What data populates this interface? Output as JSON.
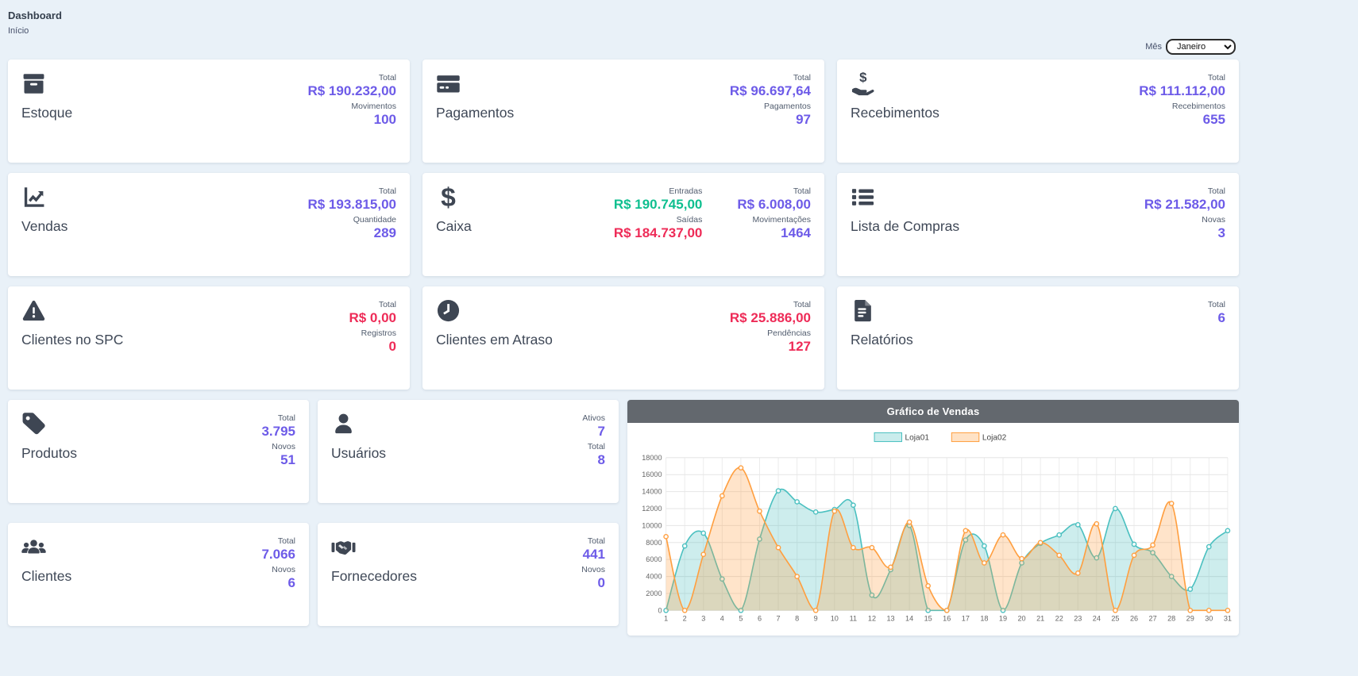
{
  "page": {
    "title": "Dashboard",
    "subtitle": "Início"
  },
  "month_filter": {
    "label": "Mês",
    "selected": "Janeiro"
  },
  "colors": {
    "purple": "#6d5be8",
    "green": "#0fbf8f",
    "red": "#ee2b57",
    "page-bg": "#e9f1f8",
    "card-bg": "#ffffff",
    "chart-header-bg": "#63686e",
    "icon": "#3e4653",
    "teal-series": "#4bc0c0",
    "orange-series": "#ff9f40"
  },
  "cards": {
    "estoque": {
      "title": "Estoque",
      "icon": "box-icon",
      "stats": [
        {
          "label": "Total",
          "value": "R$ 190.232,00"
        },
        {
          "label": "Movimentos",
          "value": "100"
        }
      ]
    },
    "pagamentos": {
      "title": "Pagamentos",
      "icon": "credit-card-icon",
      "stats": [
        {
          "label": "Total",
          "value": "R$ 96.697,64"
        },
        {
          "label": "Pagamentos",
          "value": "97"
        }
      ]
    },
    "recebimentos": {
      "title": "Recebimentos",
      "icon": "hand-holding-dollar-icon",
      "stats": [
        {
          "label": "Total",
          "value": "R$ 111.112,00"
        },
        {
          "label": "Recebimentos",
          "value": "655"
        }
      ]
    },
    "vendas": {
      "title": "Vendas",
      "icon": "chart-line-icon",
      "stats": [
        {
          "label": "Total",
          "value": "R$ 193.815,00"
        },
        {
          "label": "Quantidade",
          "value": "289"
        }
      ]
    },
    "caixa": {
      "title": "Caixa",
      "icon": "dollar-icon",
      "flow": [
        {
          "label": "Entradas",
          "value": "R$ 190.745,00"
        },
        {
          "label": "Saídas",
          "value": "R$ 184.737,00"
        }
      ],
      "stats": [
        {
          "label": "Total",
          "value": "R$ 6.008,00"
        },
        {
          "label": "Movimentações",
          "value": "1464"
        }
      ]
    },
    "lista_compras": {
      "title": "Lista de Compras",
      "icon": "list-icon",
      "stats": [
        {
          "label": "Total",
          "value": "R$ 21.582,00"
        },
        {
          "label": "Novas",
          "value": "3"
        }
      ]
    },
    "clientes_spc": {
      "title": "Clientes no SPC",
      "icon": "warning-triangle-icon",
      "stats": [
        {
          "label": "Total",
          "value": "R$ 0,00"
        },
        {
          "label": "Registros",
          "value": "0"
        }
      ]
    },
    "clientes_atraso": {
      "title": "Clientes em Atraso",
      "icon": "clock-icon",
      "stats": [
        {
          "label": "Total",
          "value": "R$ 25.886,00"
        },
        {
          "label": "Pendências",
          "value": "127"
        }
      ]
    },
    "relatorios": {
      "title": "Relatórios",
      "icon": "file-icon",
      "stats": [
        {
          "label": "Total",
          "value": "6"
        }
      ]
    },
    "produtos": {
      "title": "Produtos",
      "icon": "tag-icon",
      "stats": [
        {
          "label": "Total",
          "value": "3.795"
        },
        {
          "label": "Novos",
          "value": "51"
        }
      ]
    },
    "usuarios": {
      "title": "Usuários",
      "icon": "user-icon",
      "stats": [
        {
          "label": "Ativos",
          "value": "7"
        },
        {
          "label": "Total",
          "value": "8"
        }
      ]
    },
    "clientes": {
      "title": "Clientes",
      "icon": "users-icon",
      "stats": [
        {
          "label": "Total",
          "value": "7.066"
        },
        {
          "label": "Novos",
          "value": "6"
        }
      ]
    },
    "fornecedores": {
      "title": "Fornecedores",
      "icon": "handshake-icon",
      "stats": [
        {
          "label": "Total",
          "value": "441"
        },
        {
          "label": "Novos",
          "value": "0"
        }
      ]
    }
  },
  "chart_data": {
    "type": "area",
    "title": "Gráfico de Vendas",
    "x": [
      1,
      2,
      3,
      4,
      5,
      6,
      7,
      8,
      9,
      10,
      11,
      12,
      13,
      14,
      15,
      16,
      17,
      18,
      19,
      20,
      21,
      22,
      23,
      24,
      25,
      26,
      27,
      28,
      29,
      30,
      31
    ],
    "series": [
      {
        "name": "Loja01",
        "color": "#4bc0c0",
        "values": [
          0,
          7600,
          9100,
          3700,
          0,
          8400,
          14100,
          12800,
          11600,
          11900,
          12400,
          1800,
          4800,
          10000,
          0,
          0,
          8300,
          7600,
          0,
          5600,
          7900,
          8900,
          10100,
          6200,
          12000,
          7800,
          6800,
          4000,
          2500,
          7500,
          9400
        ]
      },
      {
        "name": "Loja02",
        "color": "#ff9f40",
        "values": [
          8700,
          0,
          6600,
          13500,
          16800,
          11700,
          7400,
          4000,
          0,
          11700,
          7400,
          7400,
          5100,
          10400,
          2900,
          0,
          9400,
          5600,
          8900,
          6100,
          8000,
          6500,
          4400,
          10200,
          0,
          6500,
          7700,
          12600,
          0,
          0,
          0
        ]
      }
    ],
    "ylim": [
      0,
      18000
    ],
    "ytick_step": 2000,
    "grid": true,
    "legend_position": "top"
  }
}
